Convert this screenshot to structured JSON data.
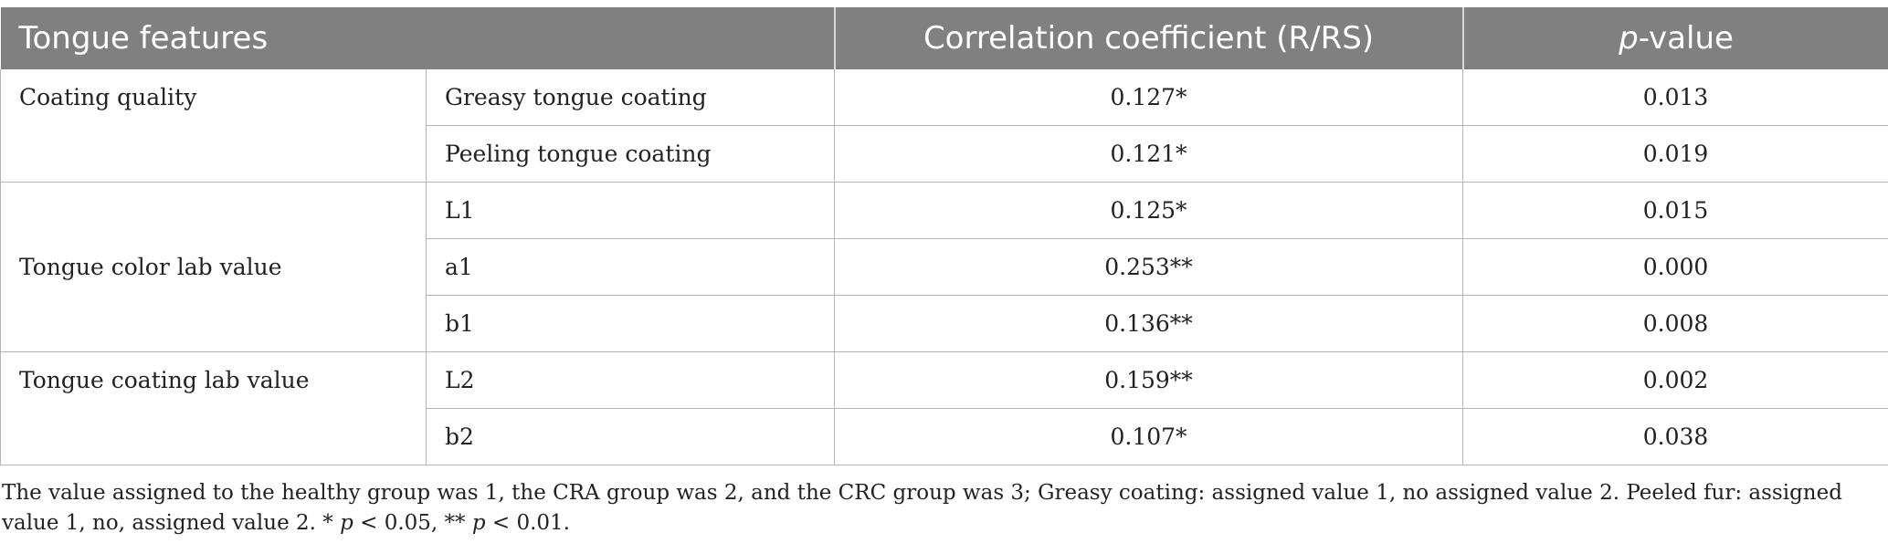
{
  "table": {
    "headers": {
      "col1": "Tongue features",
      "col3": "Correlation coefficient (R/RS)",
      "col4_italic": "p",
      "col4_rest": "-value"
    },
    "groups": [
      {
        "name": "Coating quality",
        "rows": [
          {
            "feature": "Greasy tongue coating",
            "r": "0.127*",
            "p": "0.013"
          },
          {
            "feature": "Peeling tongue coating",
            "r": "0.121*",
            "p": "0.019"
          }
        ]
      },
      {
        "name": "Tongue color lab value",
        "rows": [
          {
            "feature": "L1",
            "r": "0.125*",
            "p": "0.015"
          },
          {
            "feature": "a1",
            "r": "0.253**",
            "p": "0.000"
          },
          {
            "feature": "b1",
            "r": "0.136**",
            "p": "0.008"
          }
        ]
      },
      {
        "name": "Tongue coating lab value",
        "rows": [
          {
            "feature": "L2",
            "r": "0.159**",
            "p": "0.002"
          },
          {
            "feature": "b2",
            "r": "0.107*",
            "p": "0.038"
          }
        ]
      }
    ]
  },
  "footnote": {
    "text1": "The value assigned to the healthy group was 1, the CRA group was 2, and the CRC group was 3; Greasy coating: assigned value 1, no assigned value 2. Peeled fur: assigned value 1, no, assigned value 2. * ",
    "p1": "p",
    "text2": " < 0.05, ** ",
    "p2": "p",
    "text3": " < 0.01."
  }
}
